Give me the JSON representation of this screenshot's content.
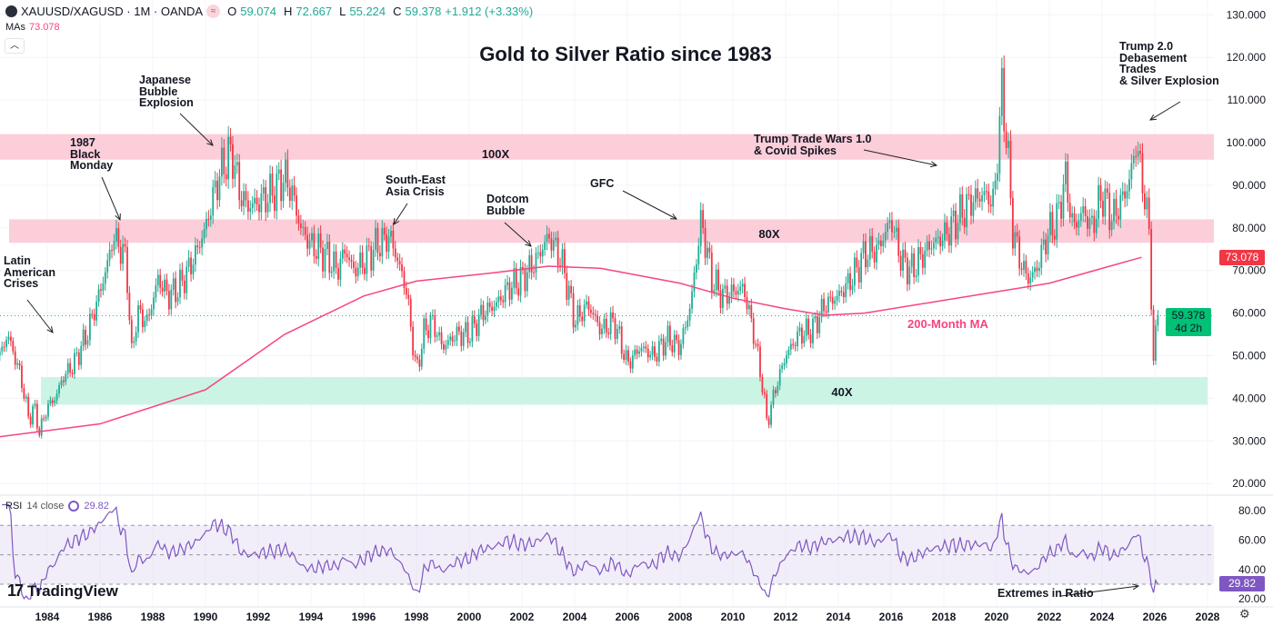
{
  "header": {
    "symbol": "XAUUSD/XAGUSD · 1M · OANDA",
    "open_label": "O",
    "open": "59.074",
    "high_label": "H",
    "high": "72.667",
    "low_label": "L",
    "low": "55.224",
    "close_label": "C",
    "close": "59.378",
    "change": "+1.912 (+3.33%)",
    "ma_label": "MAs",
    "ma_value": "73.078",
    "collapse_icon": "chevron-up-icon"
  },
  "colors": {
    "up": "#22ab94",
    "down": "#f23645",
    "ma": "#f7457f",
    "rsi": "#7e57c2",
    "band_pink": "#fcc9d6",
    "band_green": "#c6f3e2"
  },
  "rsi_header": {
    "label": "RSI",
    "params": "14 close",
    "value": "29.82"
  },
  "price_tags": {
    "ma": "73.078",
    "last": "59.378",
    "countdown": "4d 2h",
    "rsi": "29.82"
  },
  "branding": "TradingView",
  "chart_data": {
    "type": "candlestick",
    "title": "Gold to Silver Ratio since 1983",
    "interval": "1M",
    "y_scale": "linear",
    "ylim": [
      20,
      130
    ],
    "y_ticks": [
      "130.000",
      "120.000",
      "110.000",
      "100.000",
      "90.000",
      "80.000",
      "70.000",
      "60.000",
      "50.000",
      "40.000",
      "30.000",
      "20.000"
    ],
    "x_ticks": [
      "1984",
      "1986",
      "1988",
      "1990",
      "1992",
      "1994",
      "1996",
      "1998",
      "2000",
      "2002",
      "2004",
      "2006",
      "2008",
      "2010",
      "2012",
      "2014",
      "2016",
      "2018",
      "2020",
      "2022",
      "2024",
      "2026",
      "2028"
    ],
    "close_path": [
      [
        1982.2,
        50
      ],
      [
        1982.5,
        55
      ],
      [
        1983.0,
        45
      ],
      [
        1983.3,
        35
      ],
      [
        1983.5,
        38
      ],
      [
        1983.7,
        32
      ],
      [
        1984.0,
        38
      ],
      [
        1984.3,
        40
      ],
      [
        1984.6,
        45
      ],
      [
        1985.0,
        48
      ],
      [
        1985.5,
        55
      ],
      [
        1986.0,
        65
      ],
      [
        1986.3,
        72
      ],
      [
        1986.5,
        78
      ],
      [
        1986.8,
        75
      ],
      [
        1987.0,
        72
      ],
      [
        1987.2,
        50
      ],
      [
        1987.4,
        60
      ],
      [
        1987.8,
        58
      ],
      [
        1988.2,
        68
      ],
      [
        1988.6,
        64
      ],
      [
        1989.0,
        66
      ],
      [
        1989.5,
        72
      ],
      [
        1990.0,
        80
      ],
      [
        1990.4,
        90
      ],
      [
        1990.7,
        95
      ],
      [
        1991.0,
        98
      ],
      [
        1991.3,
        88
      ],
      [
        1991.6,
        85
      ],
      [
        1992.0,
        86
      ],
      [
        1992.5,
        88
      ],
      [
        1993.0,
        92
      ],
      [
        1993.3,
        88
      ],
      [
        1993.6,
        80
      ],
      [
        1994.0,
        76
      ],
      [
        1994.5,
        74
      ],
      [
        1995.0,
        70
      ],
      [
        1995.3,
        75
      ],
      [
        1995.6,
        70
      ],
      [
        1996.0,
        72
      ],
      [
        1996.5,
        76
      ],
      [
        1997.0,
        78
      ],
      [
        1997.3,
        72
      ],
      [
        1997.6,
        66
      ],
      [
        1998.0,
        46
      ],
      [
        1998.3,
        56
      ],
      [
        1998.6,
        58
      ],
      [
        1999.0,
        52
      ],
      [
        1999.5,
        55
      ],
      [
        2000.0,
        55
      ],
      [
        2000.5,
        60
      ],
      [
        2001.0,
        62
      ],
      [
        2001.5,
        66
      ],
      [
        2002.0,
        68
      ],
      [
        2002.5,
        72
      ],
      [
        2003.0,
        78
      ],
      [
        2003.3,
        75
      ],
      [
        2003.6,
        70
      ],
      [
        2004.0,
        58
      ],
      [
        2004.5,
        62
      ],
      [
        2005.0,
        56
      ],
      [
        2005.5,
        58
      ],
      [
        2006.0,
        48
      ],
      [
        2006.5,
        52
      ],
      [
        2007.0,
        50
      ],
      [
        2007.5,
        54
      ],
      [
        2008.0,
        52
      ],
      [
        2008.4,
        62
      ],
      [
        2008.8,
        82
      ],
      [
        2009.2,
        68
      ],
      [
        2009.6,
        64
      ],
      [
        2010.0,
        65
      ],
      [
        2010.4,
        66
      ],
      [
        2010.8,
        55
      ],
      [
        2011.1,
        44
      ],
      [
        2011.3,
        34
      ],
      [
        2011.6,
        42
      ],
      [
        2012.0,
        50
      ],
      [
        2012.5,
        55
      ],
      [
        2013.0,
        56
      ],
      [
        2013.5,
        62
      ],
      [
        2014.0,
        64
      ],
      [
        2014.5,
        68
      ],
      [
        2015.0,
        74
      ],
      [
        2015.5,
        75
      ],
      [
        2016.0,
        82
      ],
      [
        2016.4,
        72
      ],
      [
        2016.8,
        70
      ],
      [
        2017.0,
        72
      ],
      [
        2017.5,
        76
      ],
      [
        2018.0,
        78
      ],
      [
        2018.5,
        82
      ],
      [
        2019.0,
        86
      ],
      [
        2019.5,
        88
      ],
      [
        2019.9,
        86
      ],
      [
        2020.2,
        112
      ],
      [
        2020.4,
        100
      ],
      [
        2020.6,
        80
      ],
      [
        2020.9,
        72
      ],
      [
        2021.2,
        68
      ],
      [
        2021.5,
        70
      ],
      [
        2021.9,
        78
      ],
      [
        2022.3,
        82
      ],
      [
        2022.6,
        92
      ],
      [
        2022.9,
        80
      ],
      [
        2023.3,
        84
      ],
      [
        2023.6,
        80
      ],
      [
        2024.0,
        88
      ],
      [
        2024.4,
        82
      ],
      [
        2024.7,
        86
      ],
      [
        2025.0,
        90
      ],
      [
        2025.3,
        100
      ],
      [
        2025.6,
        88
      ],
      [
        2025.8,
        78
      ],
      [
        2025.95,
        48
      ],
      [
        2026.1,
        59.378
      ]
    ],
    "ma_200": {
      "name": "200-Month MA",
      "path": [
        [
          1982.2,
          31
        ],
        [
          1986.0,
          34
        ],
        [
          1990.0,
          42
        ],
        [
          1993.0,
          55
        ],
        [
          1996.0,
          64
        ],
        [
          1998.0,
          67.5
        ],
        [
          2001.0,
          69.5
        ],
        [
          2003.0,
          71
        ],
        [
          2005.0,
          70.5
        ],
        [
          2008.0,
          67
        ],
        [
          2010.0,
          63.5
        ],
        [
          2012.0,
          61
        ],
        [
          2013.5,
          59.5
        ],
        [
          2015.0,
          60
        ],
        [
          2018.0,
          63
        ],
        [
          2020.0,
          65
        ],
        [
          2022.0,
          67
        ],
        [
          2024.0,
          70.5
        ],
        [
          2025.5,
          73.1
        ]
      ]
    },
    "zones": [
      {
        "label": "100X",
        "low": 96,
        "high": 102
      },
      {
        "label": "80X",
        "low": 76.5,
        "high": 82
      },
      {
        "label": "40X",
        "low": 38.5,
        "high": 45
      }
    ],
    "annotations": [
      {
        "text": "Latin\nAmerican\nCrises"
      },
      {
        "text": "1987\nBlack\nMonday"
      },
      {
        "text": "Japanese\nBubble\nExplosion"
      },
      {
        "text": "South-East\nAsia Crisis"
      },
      {
        "text": "Dotcom\nBubble"
      },
      {
        "text": "GFC"
      },
      {
        "text": "Trump Trade Wars 1.0\n& Covid Spikes"
      },
      {
        "text": "Trump 2.0\nDebasement\nTrades\n& Silver Explosion"
      },
      {
        "text": "Extremes in Ratio"
      }
    ],
    "rsi": {
      "period": 14,
      "ylim": [
        15,
        85
      ],
      "y_ticks": [
        "80.00",
        "60.00",
        "40.00",
        "20.00"
      ],
      "overbought": 70,
      "oversold": 30,
      "last": 29.82
    }
  }
}
